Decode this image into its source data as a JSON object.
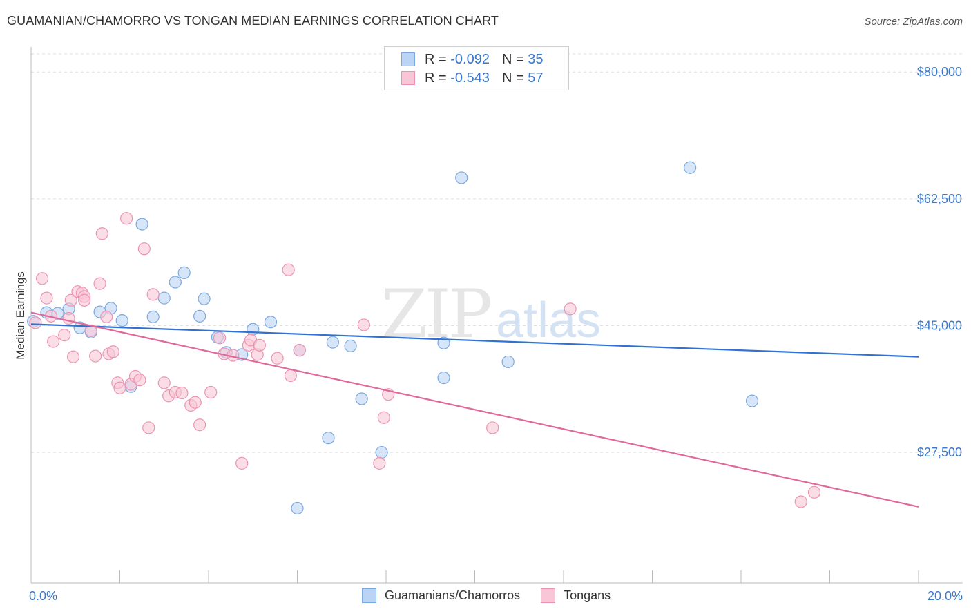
{
  "title": "GUAMANIAN/CHAMORRO VS TONGAN MEDIAN EARNINGS CORRELATION CHART",
  "source": "Source: ZipAtlas.com",
  "watermark": {
    "zip": "ZIP",
    "atlas": "atlas"
  },
  "legend": {
    "rows": [
      {
        "r_label": "R = ",
        "r_value": "-0.092",
        "n_label": "N = ",
        "n_value": "35"
      },
      {
        "r_label": "R = ",
        "r_value": "-0.543",
        "n_label": "N = ",
        "n_value": "57"
      }
    ]
  },
  "bottom_legend": [
    "Guamanians/Chamorros",
    "Tongans"
  ],
  "colors": {
    "blue_fill": "#bcd4f4",
    "blue_stroke": "#7aa8e0",
    "blue_line": "#2f72d1",
    "pink_fill": "#f8c6d6",
    "pink_stroke": "#ec93b3",
    "pink_line": "#e0689a",
    "tick_text": "#3b78c8",
    "grid": "#dddddd"
  },
  "chart_data": {
    "type": "scatter",
    "title": "GUAMANIAN/CHAMORRO VS TONGAN MEDIAN EARNINGS CORRELATION CHART",
    "xlabel": "",
    "ylabel": "Median Earnings",
    "xlim": [
      0,
      20
    ],
    "ylim": [
      9500,
      82500
    ],
    "x_tick_labels": [
      "0.0%",
      "20.0%"
    ],
    "y_ticks": [
      27500,
      45000,
      62500,
      80000
    ],
    "y_tick_labels": [
      "$27,500",
      "$45,000",
      "$62,500",
      "$80,000"
    ],
    "grid": true,
    "legend_position": "top-center",
    "series": [
      {
        "name": "Guamanians/Chamorros",
        "color": "#7aa8e0",
        "trend": {
          "x0": 0,
          "y0": 45200,
          "x1": 20,
          "y1": 40700
        },
        "points": [
          [
            0.05,
            45600
          ],
          [
            0.35,
            46800
          ],
          [
            0.6,
            46700
          ],
          [
            0.85,
            47300
          ],
          [
            1.1,
            44700
          ],
          [
            1.35,
            44100
          ],
          [
            1.55,
            46900
          ],
          [
            1.8,
            47400
          ],
          [
            2.05,
            45700
          ],
          [
            2.25,
            36600
          ],
          [
            2.5,
            59000
          ],
          [
            2.75,
            46200
          ],
          [
            3.0,
            48800
          ],
          [
            3.25,
            51000
          ],
          [
            3.45,
            52300
          ],
          [
            3.8,
            46300
          ],
          [
            3.9,
            48700
          ],
          [
            4.2,
            43400
          ],
          [
            4.4,
            41300
          ],
          [
            4.75,
            41000
          ],
          [
            5.0,
            44500
          ],
          [
            5.4,
            45500
          ],
          [
            6.0,
            19800
          ],
          [
            6.05,
            41600
          ],
          [
            6.7,
            29500
          ],
          [
            6.8,
            42700
          ],
          [
            7.2,
            42200
          ],
          [
            7.45,
            34900
          ],
          [
            7.9,
            27500
          ],
          [
            9.3,
            37800
          ],
          [
            9.3,
            42600
          ],
          [
            9.7,
            65400
          ],
          [
            10.75,
            40000
          ],
          [
            14.85,
            66800
          ],
          [
            16.25,
            34600
          ]
        ]
      },
      {
        "name": "Tongans",
        "color": "#ec93b3",
        "trend": {
          "x0": 0,
          "y0": 46800,
          "x1": 20,
          "y1": 20000
        },
        "points": [
          [
            0.1,
            45400
          ],
          [
            0.25,
            51500
          ],
          [
            0.35,
            48800
          ],
          [
            0.5,
            42800
          ],
          [
            0.75,
            43700
          ],
          [
            0.85,
            46000
          ],
          [
            0.9,
            48500
          ],
          [
            0.95,
            40700
          ],
          [
            1.05,
            49700
          ],
          [
            1.15,
            49500
          ],
          [
            1.2,
            49000
          ],
          [
            1.35,
            44300
          ],
          [
            1.45,
            40800
          ],
          [
            1.55,
            50800
          ],
          [
            1.6,
            57700
          ],
          [
            1.7,
            46200
          ],
          [
            1.75,
            41100
          ],
          [
            1.85,
            41400
          ],
          [
            1.95,
            37100
          ],
          [
            2.0,
            36400
          ],
          [
            2.15,
            59800
          ],
          [
            2.25,
            36900
          ],
          [
            2.35,
            38000
          ],
          [
            2.45,
            37500
          ],
          [
            2.55,
            55600
          ],
          [
            2.65,
            30900
          ],
          [
            2.75,
            49300
          ],
          [
            3.0,
            37100
          ],
          [
            3.1,
            35300
          ],
          [
            3.25,
            35800
          ],
          [
            3.4,
            35700
          ],
          [
            3.6,
            34000
          ],
          [
            3.7,
            34400
          ],
          [
            3.8,
            31300
          ],
          [
            4.05,
            35800
          ],
          [
            4.25,
            43300
          ],
          [
            4.35,
            41100
          ],
          [
            4.55,
            40900
          ],
          [
            4.75,
            26000
          ],
          [
            4.9,
            42300
          ],
          [
            4.95,
            43000
          ],
          [
            5.1,
            41000
          ],
          [
            5.15,
            42300
          ],
          [
            5.55,
            40500
          ],
          [
            5.8,
            52700
          ],
          [
            5.85,
            38100
          ],
          [
            6.05,
            41600
          ],
          [
            7.5,
            45100
          ],
          [
            7.85,
            26000
          ],
          [
            7.95,
            32300
          ],
          [
            8.05,
            35500
          ],
          [
            10.4,
            30900
          ],
          [
            12.15,
            47300
          ],
          [
            17.35,
            20700
          ],
          [
            17.65,
            22000
          ],
          [
            1.2,
            48500
          ],
          [
            0.45,
            46300
          ]
        ]
      }
    ]
  }
}
